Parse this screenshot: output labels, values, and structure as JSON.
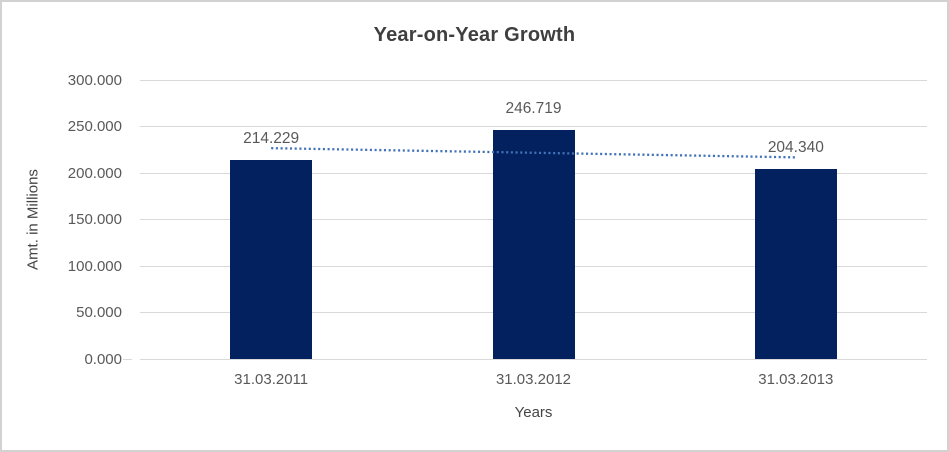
{
  "window": {
    "background": "#ffffff",
    "border_color": "#d2d2d2"
  },
  "chart_data": {
    "type": "bar",
    "title": "Year-on-Year Growth",
    "xlabel": "Years",
    "ylabel": "Amt. in Millions",
    "categories": [
      "31.03.2011",
      "31.03.2012",
      "31.03.2013"
    ],
    "values": [
      214229,
      246719,
      204340
    ],
    "value_labels": [
      "214.229",
      "246.719",
      "204.340"
    ],
    "ylim": [
      0,
      300000
    ],
    "ytick_step": 50000,
    "ytick_labels": [
      "300.000",
      "250.000",
      "200.000",
      "150.000",
      "100.000",
      "50.000",
      "0.000"
    ],
    "grid": true,
    "legend": false,
    "trendline": {
      "type": "linear",
      "style": "dotted"
    },
    "colors": {
      "bar": "#02215e",
      "trendline": "#4272b8",
      "gridline": "#d9d9d9",
      "tick_text": "#595959",
      "label_text": "#595959",
      "title_text": "#3f3f3f",
      "axis_title_text": "#454545"
    }
  }
}
